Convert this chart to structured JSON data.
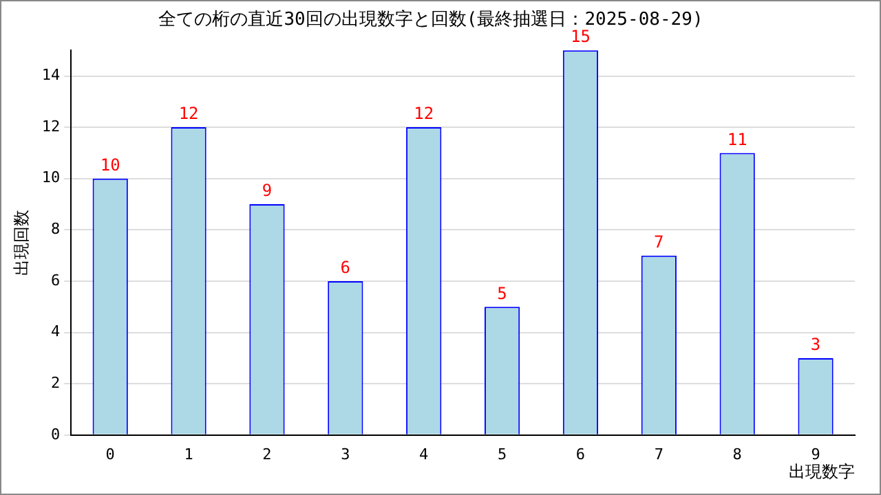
{
  "chart_data": {
    "type": "bar",
    "title": "全ての桁の直近30回の出現数字と回数(最終抽選日：2025-08-29)",
    "xlabel": "出現数字",
    "ylabel": "出現回数",
    "categories": [
      "0",
      "1",
      "2",
      "3",
      "4",
      "5",
      "6",
      "7",
      "8",
      "9"
    ],
    "series": [
      {
        "color": "#add8e6",
        "values": [
          10,
          12,
          9,
          6,
          12,
          5,
          15,
          7,
          11,
          3
        ]
      }
    ],
    "ylim": [
      0,
      15
    ],
    "yticks": [
      0,
      2,
      4,
      6,
      8,
      10,
      12,
      14
    ],
    "grid": "y",
    "data_labels": true,
    "legend": false
  }
}
